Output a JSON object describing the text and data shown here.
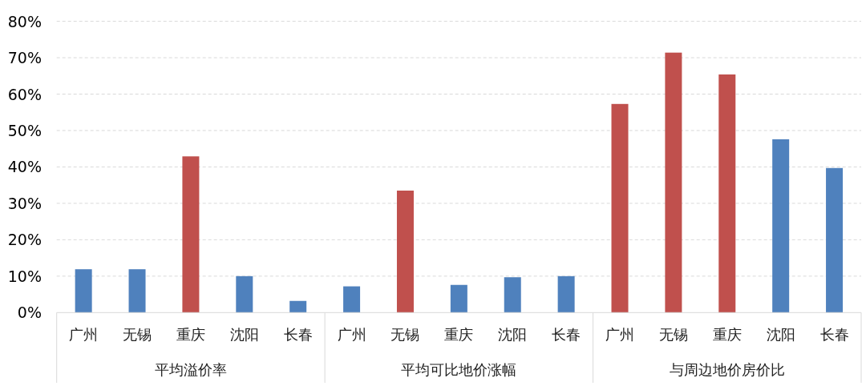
{
  "chart_data": {
    "type": "bar",
    "categories": [
      "广州",
      "无锡",
      "重庆",
      "沈阳",
      "长春",
      "广州",
      "无锡",
      "重庆",
      "沈阳",
      "长春",
      "广州",
      "无锡",
      "重庆",
      "沈阳",
      "长春"
    ],
    "values": [
      11.9,
      11.9,
      42.9,
      10.0,
      3.2,
      7.2,
      33.5,
      7.6,
      9.7,
      10.0,
      57.3,
      71.4,
      65.4,
      47.6,
      39.7
    ],
    "colors": [
      "#4f81bd",
      "#4f81bd",
      "#c0504d",
      "#4f81bd",
      "#4f81bd",
      "#4f81bd",
      "#c0504d",
      "#4f81bd",
      "#4f81bd",
      "#4f81bd",
      "#c0504d",
      "#c0504d",
      "#c0504d",
      "#4f81bd",
      "#4f81bd"
    ],
    "annotations": [
      "平均溢价率",
      "平均可比地价涨幅",
      "与周边地价房价比"
    ],
    "ylim": [
      0,
      80
    ],
    "yticks": [
      {
        "value": 0,
        "label": "0%"
      },
      {
        "value": 10,
        "label": "10%"
      },
      {
        "value": 20,
        "label": "20%"
      },
      {
        "value": 30,
        "label": "30%"
      },
      {
        "value": 40,
        "label": "40%"
      },
      {
        "value": 50,
        "label": "50%"
      },
      {
        "value": 60,
        "label": "60%"
      },
      {
        "value": 70,
        "label": "70%"
      },
      {
        "value": 80,
        "label": "80%"
      }
    ],
    "grid": "y"
  }
}
